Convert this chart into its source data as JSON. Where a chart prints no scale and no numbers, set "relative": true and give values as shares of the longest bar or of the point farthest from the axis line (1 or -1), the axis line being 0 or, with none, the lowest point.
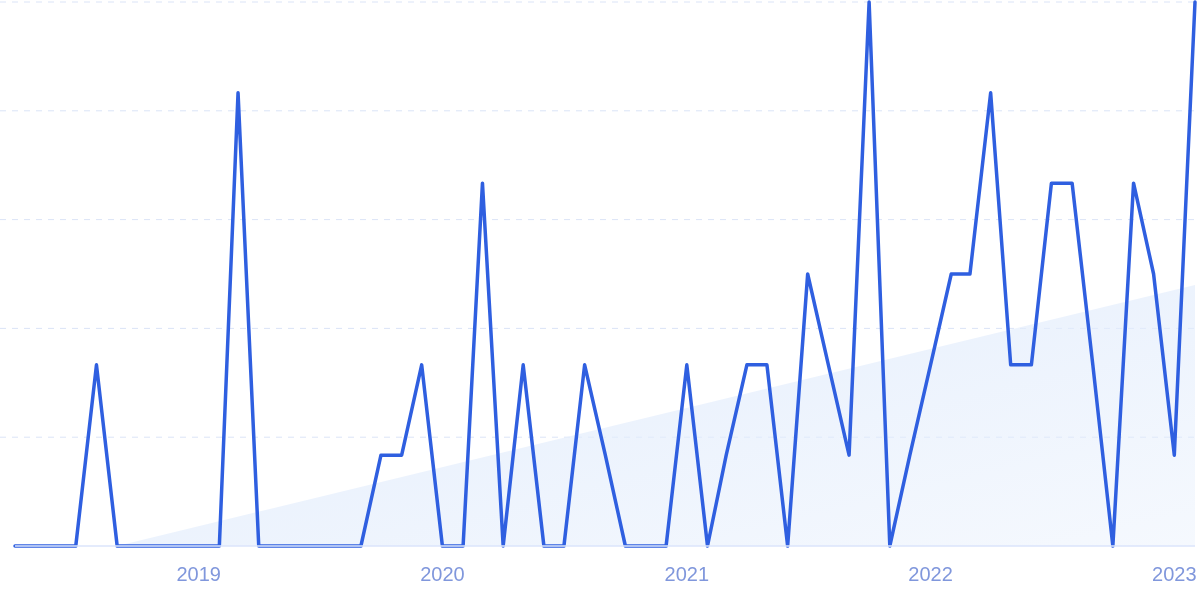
{
  "chart_data": {
    "type": "line",
    "relative": true,
    "grid": "y",
    "marker": "none",
    "line_style": "solid",
    "xlim": [
      "2018-04",
      "2023-02"
    ],
    "xticks": [
      "2019",
      "2020",
      "2021",
      "2022",
      "2023"
    ],
    "series": [
      {
        "type": "area",
        "color": "#e3edfc",
        "x": [
          "2018-09",
          "2023-02"
        ],
        "values": [
          0,
          0.48
        ]
      },
      {
        "color": "#2f5fe0",
        "x": [
          "2018-04",
          "2018-05",
          "2018-06",
          "2018-07",
          "2018-08",
          "2018-09",
          "2018-10",
          "2018-11",
          "2018-12",
          "2019-01",
          "2019-02",
          "2019-03",
          "2019-04",
          "2019-05",
          "2019-06",
          "2019-07",
          "2019-08",
          "2019-09",
          "2019-10",
          "2019-11",
          "2019-12",
          "2020-01",
          "2020-02",
          "2020-03",
          "2020-04",
          "2020-05",
          "2020-06",
          "2020-07",
          "2020-08",
          "2020-09",
          "2020-10",
          "2020-11",
          "2020-12",
          "2021-01",
          "2021-02",
          "2021-03",
          "2021-04",
          "2021-05",
          "2021-06",
          "2021-07",
          "2021-08",
          "2021-09",
          "2021-10",
          "2021-11",
          "2021-12",
          "2022-01",
          "2022-02",
          "2022-03",
          "2022-04",
          "2022-05",
          "2022-06",
          "2022-07",
          "2022-08",
          "2022-09",
          "2022-10",
          "2022-11",
          "2022-12",
          "2023-01",
          "2023-02"
        ],
        "values": [
          0,
          0,
          0,
          0,
          0.333,
          0,
          0,
          0,
          0,
          0,
          0,
          0.833,
          0,
          0,
          0,
          0,
          0,
          0,
          0.167,
          0.167,
          0.333,
          0,
          0,
          0.667,
          0,
          0.333,
          0,
          0,
          0.333,
          0.167,
          0,
          0,
          0,
          0.333,
          0,
          0.167,
          0.333,
          0.333,
          0,
          0.5,
          0.333,
          0.167,
          1,
          0,
          0.167,
          0.333,
          0.5,
          0.5,
          0.833,
          0.333,
          0.333,
          0.667,
          0.667,
          0.333,
          0,
          0.667,
          0.5,
          0.167,
          1
        ]
      }
    ]
  }
}
